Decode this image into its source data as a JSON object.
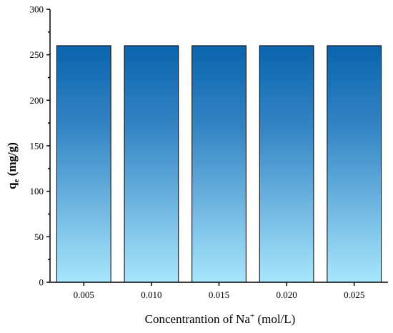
{
  "chart_data": {
    "type": "bar",
    "title": "",
    "categories": [
      "0.005",
      "0.010",
      "0.015",
      "0.020",
      "0.025"
    ],
    "values": [
      260,
      260,
      260,
      260,
      260
    ],
    "xlabel": {
      "prefix": "Concentrantion of Na",
      "superscript": "+",
      "suffix": " (mol/L)"
    },
    "ylabel": {
      "main": "q",
      "subscript": "e",
      "suffix": " (mg/g)"
    },
    "ylim": [
      0,
      300
    ],
    "yticks": [
      "0",
      "50",
      "100",
      "150",
      "200",
      "250",
      "300"
    ],
    "grid": false,
    "legend": "none",
    "bar_gradient": {
      "top": "#0a64ad",
      "bottom": "#a8e6fb"
    },
    "bar_edge_color": "#000000"
  }
}
